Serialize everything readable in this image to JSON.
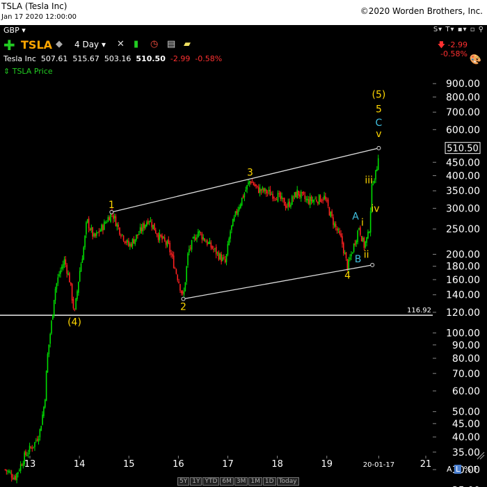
{
  "header": {
    "title": "TSLA (Tesla Inc)",
    "datetime": "Jan 17 2020 12:00:00",
    "copyright": "©2020 Worden Brothers, Inc."
  },
  "currency": "GBP",
  "toolbar": {
    "symbol": "TSLA",
    "period": "4 Day",
    "icons": [
      "plus-icon",
      "rhino-icon",
      "dropdown-icon",
      "wrench-icon",
      "bars-icon",
      "alarm-icon",
      "notes-icon",
      "note-icon"
    ],
    "right_icons": [
      "s-icon",
      "t-icon",
      "save-icon",
      "layout-icon",
      "pin-icon"
    ]
  },
  "quote": {
    "name": "Tesla Inc",
    "open": "507.61",
    "high": "515.67",
    "low": "503.16",
    "close": "510.50",
    "change": "-2.99",
    "change_pct": "-0.58%"
  },
  "change_box": {
    "change": "-2.99",
    "change_pct": "-0.58%"
  },
  "legend": {
    "label": "TSLA Price"
  },
  "chart_data": {
    "type": "candlestick",
    "scale": "log",
    "ylim": [
      22,
      1000
    ],
    "x_ticks": [
      "13",
      "14",
      "15",
      "16",
      "17",
      "18",
      "19",
      "20-01-17",
      "21"
    ],
    "y_ticks": [
      900,
      800,
      700,
      600,
      450,
      400,
      350,
      300,
      250,
      200,
      180,
      160,
      140,
      120,
      100,
      90,
      80,
      70,
      60,
      50,
      45,
      40,
      35,
      30,
      25
    ],
    "y_tick_labels": [
      "900.00",
      "800.00",
      "700.00",
      "600.00",
      "450.00",
      "400.00",
      "350.00",
      "300.00",
      "250.00",
      "200.00",
      "180.00",
      "160.00",
      "140.00",
      "120.00",
      "100.00",
      "90.00",
      "80.00",
      "70.00",
      "60.00",
      "50.00",
      "45.00",
      "40.00",
      "35.00",
      "30.00",
      "25.00"
    ],
    "last_price": 510.5,
    "last_price_label": "510.50",
    "horizontal_line": {
      "value": 116.92,
      "label": "116.92"
    },
    "path": [
      [
        12.5,
        30
      ],
      [
        12.7,
        28
      ],
      [
        12.9,
        34
      ],
      [
        13.1,
        38
      ],
      [
        13.2,
        42
      ],
      [
        13.3,
        55
      ],
      [
        13.35,
        80
      ],
      [
        13.45,
        115
      ],
      [
        13.5,
        145
      ],
      [
        13.6,
        170
      ],
      [
        13.7,
        190
      ],
      [
        13.8,
        160
      ],
      [
        13.9,
        118
      ],
      [
        14.0,
        170
      ],
      [
        14.1,
        220
      ],
      [
        14.15,
        270
      ],
      [
        14.3,
        230
      ],
      [
        14.5,
        260
      ],
      [
        14.65,
        290
      ],
      [
        14.8,
        250
      ],
      [
        15.0,
        215
      ],
      [
        15.2,
        240
      ],
      [
        15.4,
        275
      ],
      [
        15.6,
        235
      ],
      [
        15.8,
        215
      ],
      [
        16.0,
        160
      ],
      [
        16.1,
        135
      ],
      [
        16.2,
        205
      ],
      [
        16.4,
        245
      ],
      [
        16.6,
        220
      ],
      [
        16.8,
        200
      ],
      [
        16.95,
        185
      ],
      [
        17.05,
        245
      ],
      [
        17.2,
        300
      ],
      [
        17.45,
        385
      ],
      [
        17.6,
        355
      ],
      [
        17.8,
        345
      ],
      [
        18.0,
        335
      ],
      [
        18.2,
        305
      ],
      [
        18.4,
        345
      ],
      [
        18.6,
        320
      ],
      [
        18.8,
        325
      ],
      [
        18.95,
        330
      ],
      [
        19.1,
        275
      ],
      [
        19.3,
        225
      ],
      [
        19.42,
        178
      ],
      [
        19.6,
        235
      ],
      [
        19.65,
        255
      ],
      [
        19.75,
        215
      ],
      [
        19.85,
        240
      ],
      [
        19.92,
        380
      ],
      [
        20.0,
        410
      ],
      [
        20.05,
        505
      ]
    ],
    "trendlines": [
      {
        "from": [
          14.65,
          290
        ],
        "to": [
          20.05,
          510
        ]
      },
      {
        "from": [
          16.1,
          135
        ],
        "to": [
          19.92,
          182
        ]
      }
    ],
    "wave_labels": [
      {
        "text": "1",
        "x": 14.65,
        "y": 290,
        "color": "#ffd700",
        "pos": "above"
      },
      {
        "text": "2",
        "x": 16.1,
        "y": 135,
        "color": "#ffd700",
        "pos": "below"
      },
      {
        "text": "3",
        "x": 17.45,
        "y": 385,
        "color": "#ffd700",
        "pos": "above"
      },
      {
        "text": "4",
        "x": 19.42,
        "y": 178,
        "color": "#ffd700",
        "pos": "below"
      },
      {
        "text": "(4)",
        "x": 13.9,
        "y": 118,
        "color": "#ffd700",
        "pos": "below"
      },
      {
        "text": "(5)",
        "x": 20.05,
        "y": 820,
        "color": "#ffd700",
        "pos": "at"
      },
      {
        "text": "5",
        "x": 20.05,
        "y": 720,
        "color": "#ffd700",
        "pos": "at"
      },
      {
        "text": "C",
        "x": 20.05,
        "y": 640,
        "color": "#40c0e0",
        "pos": "at"
      },
      {
        "text": "v",
        "x": 20.05,
        "y": 580,
        "color": "#ffd700",
        "pos": "at"
      },
      {
        "text": "iii",
        "x": 19.85,
        "y": 385,
        "color": "#ffd700",
        "pos": "at"
      },
      {
        "text": "iv",
        "x": 19.98,
        "y": 300,
        "color": "#ffd700",
        "pos": "at"
      },
      {
        "text": "i",
        "x": 19.72,
        "y": 265,
        "color": "#ffd700",
        "pos": "at"
      },
      {
        "text": "ii",
        "x": 19.8,
        "y": 200,
        "color": "#ffd700",
        "pos": "at"
      },
      {
        "text": "A",
        "x": 19.58,
        "y": 280,
        "color": "#40c0e0",
        "pos": "at"
      },
      {
        "text": "B",
        "x": 19.63,
        "y": 192,
        "color": "#40c0e0",
        "pos": "at"
      }
    ]
  },
  "bottom_buttons": [
    "5Y",
    "1Y",
    "YTD",
    "6M",
    "3M",
    "1M",
    "1D",
    "Today"
  ],
  "scale_buttons": {
    "a": "A",
    "l": "L",
    "pct": "%",
    "f": "F"
  }
}
